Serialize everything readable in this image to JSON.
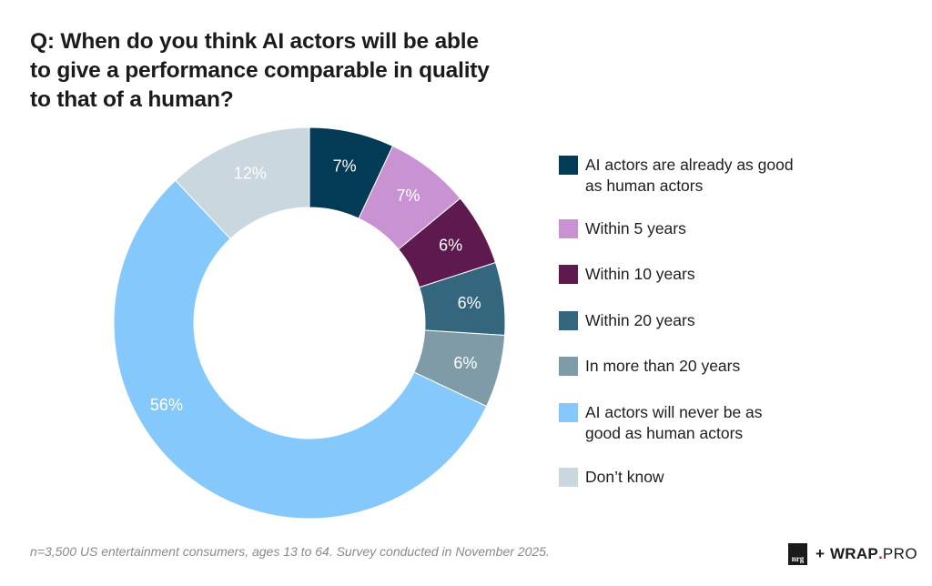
{
  "title": {
    "line1": "Q: When do you think AI actors will be able",
    "line2": "to give a performance comparable in quality",
    "line3": "to that of a human?"
  },
  "footnote": "n=3,500 US entertainment consumers, ages 13 to 64. Survey conducted in November 2025.",
  "logo": {
    "nrg": "nrg",
    "plus": "+",
    "wrap": "WRAP",
    "dot": ".",
    "pro": "PRO"
  },
  "chart_data": {
    "type": "pie",
    "variant": "donut",
    "title": "Q: When do you think AI actors will be able to give a performance comparable in quality to that of a human?",
    "start": "12 o'clock, clockwise",
    "legend_position": "right",
    "slices": [
      {
        "label": "AI actors are already as good as human actors",
        "legend_lines": [
          "AI actors are already as good",
          "as human actors"
        ],
        "value": 7,
        "display": "7%",
        "color": "#033a55"
      },
      {
        "label": "Within 5 years",
        "legend_lines": [
          "Within 5 years"
        ],
        "value": 7,
        "display": "7%",
        "color": "#c993d3"
      },
      {
        "label": "Within 10 years",
        "legend_lines": [
          "Within 10 years"
        ],
        "value": 6,
        "display": "6%",
        "color": "#5e1a4e"
      },
      {
        "label": "Within 20 years",
        "legend_lines": [
          "Within 20 years"
        ],
        "value": 6,
        "display": "6%",
        "color": "#34667d"
      },
      {
        "label": "In more than 20 years",
        "legend_lines": [
          "In more than 20 years"
        ],
        "value": 6,
        "display": "6%",
        "color": "#7f9ba8"
      },
      {
        "label": "AI actors will never be as good as human actors",
        "legend_lines": [
          "AI actors will never be as",
          "good as human actors"
        ],
        "value": 56,
        "display": "56%",
        "color": "#85c8fb"
      },
      {
        "label": "Don’t know",
        "legend_lines": [
          "Don’t know"
        ],
        "value": 12,
        "display": "12%",
        "color": "#cad7de"
      }
    ]
  }
}
